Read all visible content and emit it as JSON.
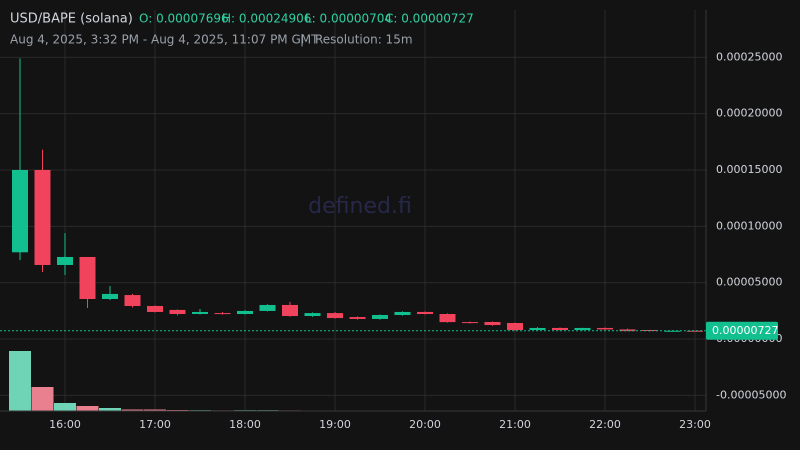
{
  "chart_data": {
    "type": "candlestick",
    "title": "USD/BAPE (solana)",
    "summary": [
      "O: 0.00007696",
      "H: 0.00024906",
      "L: 0.00000704",
      "C: 0.00000727"
    ],
    "subtitle": "Aug 4, 2025, 3:32 PM - Aug 4, 2025, 11:07 PM GMT",
    "separator": "|",
    "resolution": "Resolution: 15m",
    "watermark": "defined.fi",
    "x": [
      "15:30",
      "15:45",
      "16:00",
      "16:15",
      "16:30",
      "16:45",
      "17:00",
      "17:15",
      "17:30",
      "17:45",
      "18:00",
      "18:15",
      "18:30",
      "18:45",
      "19:00",
      "19:15",
      "19:30",
      "19:45",
      "20:00",
      "20:15",
      "20:30",
      "20:45",
      "21:00",
      "21:15",
      "21:30",
      "21:45",
      "22:00",
      "22:15",
      "22:30",
      "22:45",
      "23:00"
    ],
    "open": [
      7.696e-05,
      0.00015,
      6.57e-05,
      7.28e-05,
      3.55e-05,
      3.9e-05,
      2.93e-05,
      2.58e-05,
      2.22e-05,
      2.3e-05,
      2.22e-05,
      2.49e-05,
      3.02e-05,
      2.04e-05,
      2.3e-05,
      1.95e-05,
      1.78e-05,
      2.13e-05,
      2.4e-05,
      2.22e-05,
      1.5e-05,
      1.51e-05,
      1.42e-05,
      8e-06,
      9.8e-06,
      8e-06,
      9.8e-06,
      8.5e-06,
      8e-06,
      7.1e-06,
      7.3e-06
    ],
    "high": [
      0.00024906,
      0.000168,
      9.4e-05,
      7.28e-05,
      4.7e-05,
      4e-05,
      2.98e-05,
      2.62e-05,
      2.66e-05,
      2.4e-05,
      2.55e-05,
      3.08e-05,
      3.29e-05,
      2.35e-05,
      2.4e-05,
      2e-05,
      2.18e-05,
      2.45e-05,
      2.45e-05,
      2.28e-05,
      1.55e-05,
      1.55e-05,
      1.45e-05,
      1.05e-05,
      1.02e-05,
      1e-05,
      1.02e-05,
      9.2e-06,
      8.2e-06,
      7.8e-06,
      7.5e-06
    ],
    "low": [
      7e-05,
      5.95e-05,
      5.68e-05,
      2.75e-05,
      3.45e-05,
      2.8e-05,
      2.35e-05,
      2.1e-05,
      2.18e-05,
      2.18e-05,
      2.18e-05,
      2.45e-05,
      1.98e-05,
      1.98e-05,
      1.82e-05,
      1.72e-05,
      1.72e-05,
      2.08e-05,
      2.18e-05,
      1.45e-05,
      1.38e-05,
      1.18e-05,
      7.04e-06,
      7.5e-06,
      7.6e-06,
      7.6e-06,
      8e-06,
      7e-06,
      6.8e-06,
      6.9e-06,
      7.1e-06
    ],
    "close": [
      0.00015,
      6.57e-05,
      7.28e-05,
      3.55e-05,
      4e-05,
      2.93e-05,
      2.4e-05,
      2.22e-05,
      2.4e-05,
      2.22e-05,
      2.49e-05,
      3.02e-05,
      2.04e-05,
      2.3e-05,
      1.86e-05,
      1.78e-05,
      2.13e-05,
      2.4e-05,
      2.22e-05,
      1.5e-05,
      1.42e-05,
      1.24e-05,
      8e-06,
      9.8e-06,
      8e-06,
      9.8e-06,
      8.5e-06,
      7e-06,
      7.1e-06,
      7.3e-06,
      7.27e-06
    ],
    "volume": [
      60,
      24,
      8,
      5,
      3,
      1.5,
      1.5,
      1,
      0.8,
      0.6,
      0.8,
      0.8,
      0.6,
      0.5,
      0.5,
      0.4,
      0.4,
      0.4,
      0.4,
      0.4,
      0.3,
      0.3,
      0.3,
      0.3,
      0.3,
      0.3,
      0.3,
      0.3,
      0.2,
      0.2,
      0.2
    ],
    "up_color": "#12c08f",
    "down_color": "#f2435d",
    "up_volume_color": "#6fd3b5",
    "down_volume_color": "#e9808f",
    "ylim": [
      -6.39e-05,
      0.000292
    ],
    "yticks": [
      {
        "value": 0.00025,
        "label": "0.00025000"
      },
      {
        "value": 0.0002,
        "label": "0.00020000"
      },
      {
        "value": 0.00015,
        "label": "0.00015000"
      },
      {
        "value": 0.0001,
        "label": "0.00010000"
      },
      {
        "value": 5e-05,
        "label": "0.00005000"
      },
      {
        "value": 0,
        "label": "0.00000000"
      },
      {
        "value": -5e-05,
        "label": "-0.00005000"
      }
    ],
    "xticks": [
      "16:00",
      "17:00",
      "18:00",
      "19:00",
      "20:00",
      "21:00",
      "22:00",
      "23:00"
    ],
    "last_price": {
      "value": 7.27e-06,
      "label": "0.00000727"
    },
    "grid": true
  }
}
